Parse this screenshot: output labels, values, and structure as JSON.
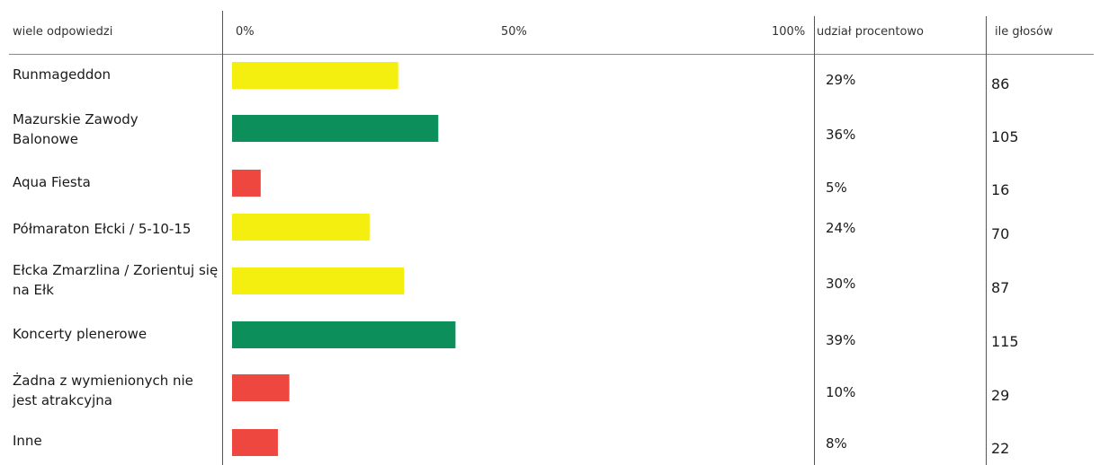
{
  "headers": {
    "answers": "wiele odpowiedzi",
    "tick0": "0%",
    "tick50": "50%",
    "tick100": "100%",
    "share": "udział procentowo",
    "votes": "ile głosów"
  },
  "colors": {
    "yellow": "#f5ef0f",
    "green": "#0c8f5b",
    "red": "#ee4740"
  },
  "chart_data": {
    "type": "bar",
    "orientation": "horizontal",
    "xlim": [
      0,
      100
    ],
    "categories": [
      "Runmageddon",
      "Mazurskie Zawody Balonowe",
      "Aqua Fiesta",
      "Półmaraton Ełcki / 5-10-15",
      "Ełcka Zmarzlina / Zorientuj się na Ełk",
      "Koncerty plenerowe",
      "Żadna z wymienionych nie jest atrakcyjna",
      "Inne"
    ],
    "values": [
      29,
      36,
      5,
      24,
      30,
      39,
      10,
      8
    ],
    "percent_labels": [
      "29%",
      "36%",
      "5%",
      "24%",
      "30%",
      "39%",
      "10%",
      "8%"
    ],
    "votes": [
      "86",
      "105",
      "16",
      "70",
      "87",
      "115",
      "29",
      "22"
    ],
    "bar_colors": [
      "#f5ef0f",
      "#0c8f5b",
      "#ee4740",
      "#f5ef0f",
      "#f5ef0f",
      "#0c8f5b",
      "#ee4740",
      "#ee4740"
    ]
  }
}
